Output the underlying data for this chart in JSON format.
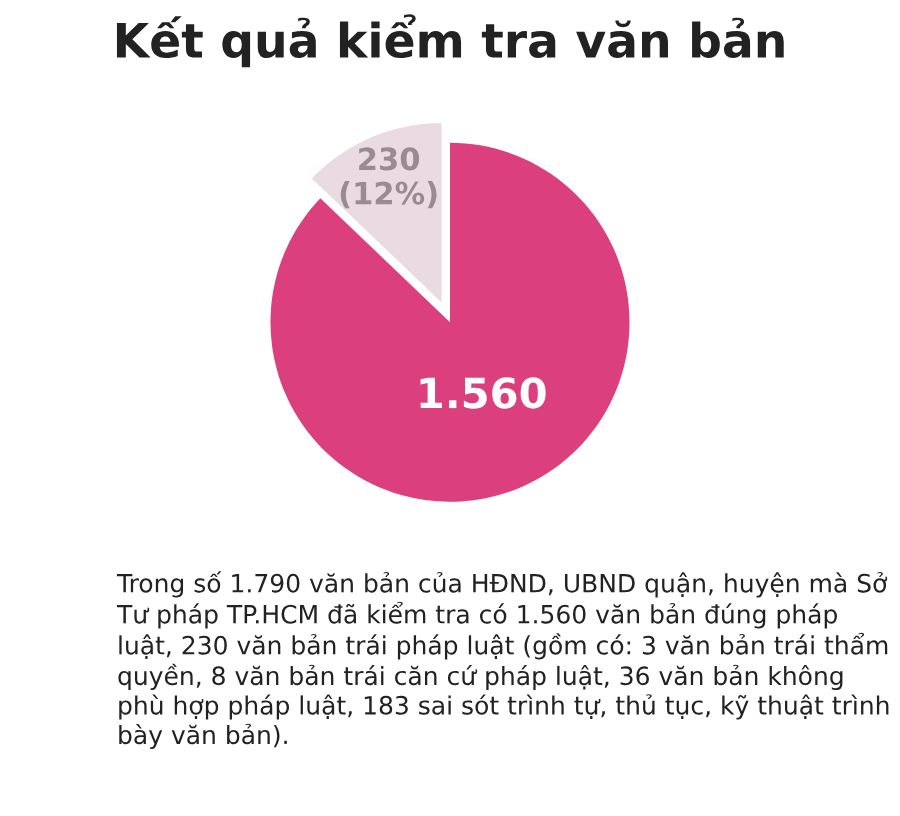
{
  "chart_data": {
    "type": "pie",
    "title": "Kết quả kiểm tra văn bản",
    "categories": [
      null,
      null
    ],
    "values": [
      1560,
      230
    ],
    "colors": [
      "#dc3f7e",
      "#eadbe2"
    ],
    "value_labels": [
      "1.560",
      "230\n(12%)"
    ],
    "annotations": [
      "Trong số 1.790 văn bản của HĐND, UBND quận, huyện mà Sở Tư pháp TP.HCM đã kiểm tra có 1.560 văn bản đúng pháp luật, 230 văn bản trái pháp luật (gồm có: 3 văn bản trái thẩm quyền, 8 văn bản trái căn cứ pháp luật, 36 văn bản không phù hợp pháp luật, 183 sai sót trình tự, thủ tục, kỹ thuật trình bày văn bản)."
    ]
  }
}
